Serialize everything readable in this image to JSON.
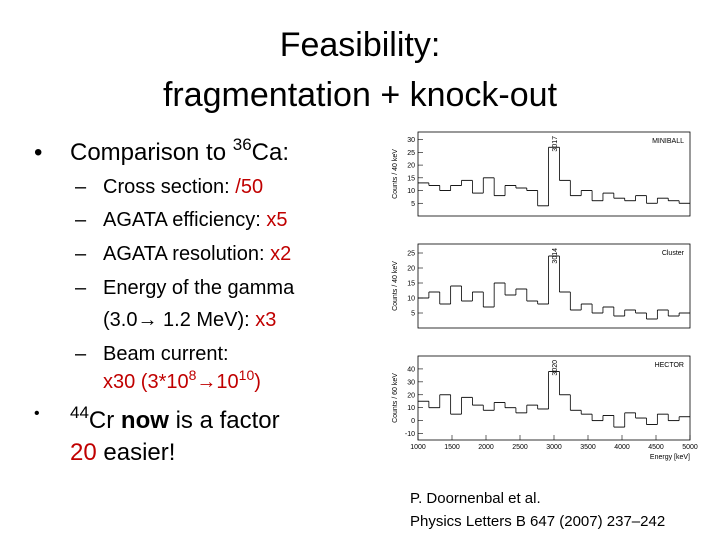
{
  "slide": {
    "title": [
      "Feasibility:",
      "fragmentation + knock-out"
    ],
    "lines": [
      {
        "marker": "•",
        "segments": [
          {
            "text": "Comparison to "
          },
          {
            "text": "36",
            "sup": true
          },
          {
            "text": "Ca:"
          }
        ]
      },
      {
        "marker": "–",
        "segments": [
          {
            "text": "Cross section: "
          },
          {
            "text": "/50",
            "red": true
          }
        ]
      },
      {
        "marker": "–",
        "segments": [
          {
            "text": "AGATA efficiency: "
          },
          {
            "text": "x5",
            "red": true
          }
        ]
      },
      {
        "marker": "–",
        "segments": [
          {
            "text": "AGATA resolution: "
          },
          {
            "text": "x2",
            "red": true
          }
        ]
      },
      {
        "marker": "–",
        "segments": [
          {
            "text": "Energy of the gamma"
          }
        ]
      },
      {
        "segments": [
          {
            "text": "(3.0→ 1.2 MeV): "
          },
          {
            "text": "x3",
            "red": true
          }
        ]
      },
      {
        "marker": "–",
        "segments": [
          {
            "text": "Beam current:"
          }
        ]
      },
      {
        "segments": [
          {
            "text": "x30 (3*10",
            "red": true
          },
          {
            "text": "8",
            "red": true,
            "sup": true
          },
          {
            "text": "→10",
            "red": true
          },
          {
            "text": "10",
            "red": true,
            "sup": true
          },
          {
            "text": ")",
            "red": true
          }
        ]
      },
      {
        "marker": "•",
        "segments": [
          {
            "text": "44",
            "sup": true
          },
          {
            "text": "Cr "
          },
          {
            "text": "now",
            "bold": true
          },
          {
            "text": " is a factor"
          }
        ]
      },
      {
        "segments": [
          {
            "text": "20",
            "red": true
          },
          {
            "text": " easier!"
          }
        ]
      }
    ],
    "citation": [
      "P. Doornenbal et al.",
      "Physics Letters B 647 (2007) 237–242"
    ]
  },
  "chart_data": [
    {
      "type": "histogram",
      "label": "MINIBALL",
      "peak_label": "3017",
      "ylabel": "Counts / 40 keV",
      "bins": [
        1000,
        1160,
        1320,
        1480,
        1640,
        1800,
        1960,
        2120,
        2280,
        2440,
        2600,
        2760,
        2920,
        3080,
        3240,
        3400,
        3560,
        3720,
        3880,
        4040,
        4200,
        4360,
        4520,
        4680,
        4840,
        5000
      ],
      "values": [
        13,
        12,
        10,
        12,
        14,
        9,
        15,
        8,
        12,
        11,
        10,
        4,
        27,
        14,
        8,
        10,
        6,
        9,
        7,
        6,
        8,
        5,
        7,
        6,
        5
      ],
      "xlim": [
        1000,
        5000
      ],
      "ylim": [
        0,
        33
      ],
      "yticks": [
        5,
        10,
        15,
        20,
        25,
        30
      ],
      "color": "#000000"
    },
    {
      "type": "histogram",
      "label": "Cluster",
      "peak_label": "3014",
      "ylabel": "Counts / 40 keV",
      "bins": [
        1000,
        1160,
        1320,
        1480,
        1640,
        1800,
        1960,
        2120,
        2280,
        2440,
        2600,
        2760,
        2920,
        3080,
        3240,
        3400,
        3560,
        3720,
        3880,
        4040,
        4200,
        4360,
        4520,
        4680,
        4840,
        5000
      ],
      "values": [
        10,
        12,
        8,
        14,
        9,
        12,
        7,
        15,
        11,
        13,
        9,
        8,
        24,
        12,
        6,
        8,
        5,
        7,
        4,
        6,
        5,
        3,
        6,
        4,
        5
      ],
      "xlim": [
        1000,
        5000
      ],
      "ylim": [
        0,
        28
      ],
      "yticks": [
        5,
        10,
        15,
        20,
        25
      ],
      "color": "#000000"
    },
    {
      "type": "histogram",
      "label": "HECTOR",
      "peak_label": "3020",
      "ylabel": "Counts / 60 keV",
      "xlabel": "Energy [keV]",
      "bins": [
        1000,
        1160,
        1320,
        1480,
        1640,
        1800,
        1960,
        2120,
        2280,
        2440,
        2600,
        2760,
        2920,
        3080,
        3240,
        3400,
        3560,
        3720,
        3880,
        4040,
        4200,
        4360,
        4520,
        4680,
        4840,
        5000
      ],
      "values": [
        15,
        10,
        20,
        5,
        18,
        12,
        8,
        14,
        10,
        6,
        12,
        9,
        38,
        20,
        8,
        5,
        0,
        4,
        -5,
        6,
        2,
        -3,
        5,
        0,
        3
      ],
      "xlim": [
        1000,
        5000
      ],
      "ylim": [
        -15,
        50
      ],
      "yticks": [
        -10,
        0,
        10,
        20,
        30,
        40
      ],
      "xticks": [
        1000,
        1500,
        2000,
        2500,
        3000,
        3500,
        4000,
        4500,
        5000
      ],
      "color": "#000000"
    }
  ]
}
